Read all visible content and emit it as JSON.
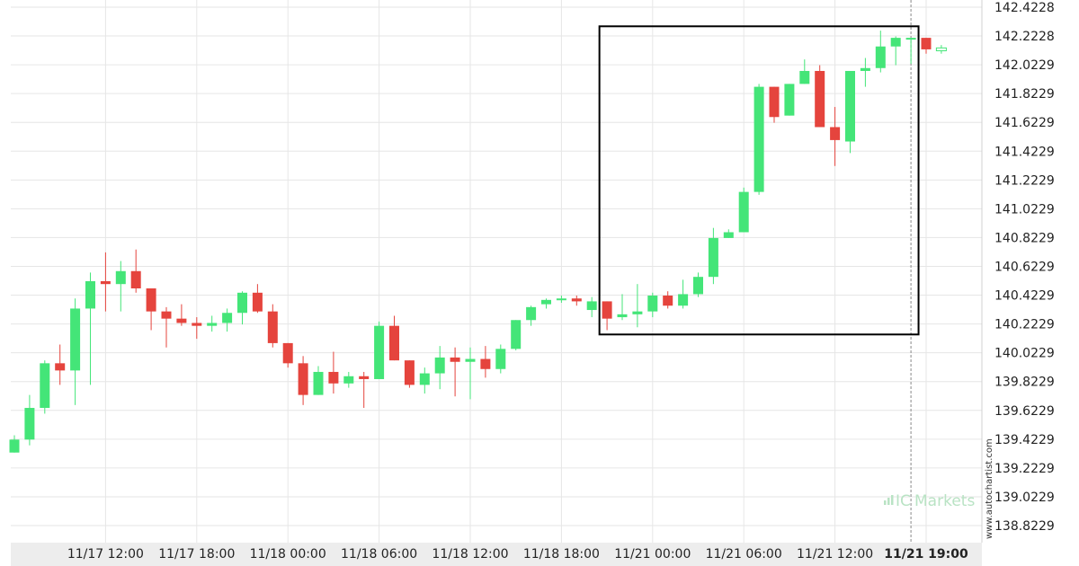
{
  "chart_data": {
    "type": "candlestick",
    "y_ticks": [
      "142.4228",
      "142.2228",
      "142.0229",
      "141.8229",
      "141.6229",
      "141.4229",
      "141.2229",
      "141.0229",
      "140.8229",
      "140.6229",
      "140.4229",
      "140.2229",
      "140.0229",
      "139.8229",
      "139.6229",
      "139.4229",
      "139.2229",
      "139.0229",
      "138.8229"
    ],
    "ylim": [
      138.72,
      142.46
    ],
    "x_ticks": [
      "11/17 12:00",
      "11/17 18:00",
      "11/18 00:00",
      "11/18 06:00",
      "11/18 12:00",
      "11/18 18:00",
      "11/21 00:00",
      "11/21 06:00",
      "11/21 12:00",
      "11/21 19:00"
    ],
    "x_tick_index": [
      6,
      12,
      18,
      24,
      30,
      36,
      42,
      48,
      54,
      60
    ],
    "highlight_tick": "11/21 19:00",
    "current_time_index": 59,
    "pattern_box": {
      "from_index": 38.5,
      "to_index": 59.5,
      "y_top": 142.29,
      "y_bottom": 140.15
    },
    "up_color": "#44e578",
    "down_color": "#e5443d",
    "candles": [
      {
        "o": 139.33,
        "h": 139.45,
        "l": 139.33,
        "c": 139.42
      },
      {
        "o": 139.42,
        "h": 139.73,
        "l": 139.38,
        "c": 139.64
      },
      {
        "o": 139.64,
        "h": 139.97,
        "l": 139.6,
        "c": 139.95
      },
      {
        "o": 139.95,
        "h": 140.08,
        "l": 139.8,
        "c": 139.9
      },
      {
        "o": 139.9,
        "h": 140.4,
        "l": 139.66,
        "c": 140.33
      },
      {
        "o": 140.33,
        "h": 140.58,
        "l": 139.8,
        "c": 140.52
      },
      {
        "o": 140.52,
        "h": 140.72,
        "l": 140.31,
        "c": 140.5
      },
      {
        "o": 140.5,
        "h": 140.66,
        "l": 140.31,
        "c": 140.59
      },
      {
        "o": 140.59,
        "h": 140.74,
        "l": 140.44,
        "c": 140.47
      },
      {
        "o": 140.47,
        "h": 140.47,
        "l": 140.18,
        "c": 140.31
      },
      {
        "o": 140.31,
        "h": 140.34,
        "l": 140.06,
        "c": 140.26
      },
      {
        "o": 140.26,
        "h": 140.36,
        "l": 140.21,
        "c": 140.23
      },
      {
        "o": 140.23,
        "h": 140.27,
        "l": 140.12,
        "c": 140.21
      },
      {
        "o": 140.21,
        "h": 140.28,
        "l": 140.17,
        "c": 140.23
      },
      {
        "o": 140.23,
        "h": 140.33,
        "l": 140.17,
        "c": 140.3
      },
      {
        "o": 140.3,
        "h": 140.45,
        "l": 140.22,
        "c": 140.44
      },
      {
        "o": 140.44,
        "h": 140.5,
        "l": 140.3,
        "c": 140.31
      },
      {
        "o": 140.31,
        "h": 140.36,
        "l": 140.06,
        "c": 140.09
      },
      {
        "o": 140.09,
        "h": 140.09,
        "l": 139.92,
        "c": 139.95
      },
      {
        "o": 139.95,
        "h": 140.0,
        "l": 139.66,
        "c": 139.73
      },
      {
        "o": 139.73,
        "h": 139.93,
        "l": 139.73,
        "c": 139.89
      },
      {
        "o": 139.89,
        "h": 140.03,
        "l": 139.74,
        "c": 139.81
      },
      {
        "o": 139.81,
        "h": 139.89,
        "l": 139.78,
        "c": 139.86
      },
      {
        "o": 139.86,
        "h": 139.89,
        "l": 139.64,
        "c": 139.84
      },
      {
        "o": 139.84,
        "h": 140.24,
        "l": 139.84,
        "c": 140.21
      },
      {
        "o": 140.21,
        "h": 140.28,
        "l": 139.97,
        "c": 139.97
      },
      {
        "o": 139.97,
        "h": 139.97,
        "l": 139.78,
        "c": 139.8
      },
      {
        "o": 139.8,
        "h": 139.92,
        "l": 139.74,
        "c": 139.88
      },
      {
        "o": 139.88,
        "h": 140.07,
        "l": 139.77,
        "c": 139.99
      },
      {
        "o": 139.99,
        "h": 140.06,
        "l": 139.72,
        "c": 139.96
      },
      {
        "o": 139.96,
        "h": 140.06,
        "l": 139.7,
        "c": 139.98
      },
      {
        "o": 139.98,
        "h": 140.07,
        "l": 139.85,
        "c": 139.91
      },
      {
        "o": 139.91,
        "h": 140.08,
        "l": 139.88,
        "c": 140.05
      },
      {
        "o": 140.05,
        "h": 140.25,
        "l": 140.04,
        "c": 140.25
      },
      {
        "o": 140.25,
        "h": 140.35,
        "l": 140.21,
        "c": 140.34
      },
      {
        "o": 140.36,
        "h": 140.4,
        "l": 140.33,
        "c": 140.39
      },
      {
        "o": 140.39,
        "h": 140.42,
        "l": 140.37,
        "c": 140.4
      },
      {
        "o": 140.4,
        "h": 140.42,
        "l": 140.35,
        "c": 140.38
      },
      {
        "o": 140.32,
        "h": 140.41,
        "l": 140.27,
        "c": 140.38
      },
      {
        "o": 140.38,
        "h": 140.38,
        "l": 140.18,
        "c": 140.26
      },
      {
        "o": 140.27,
        "h": 140.43,
        "l": 140.25,
        "c": 140.29
      },
      {
        "o": 140.29,
        "h": 140.5,
        "l": 140.2,
        "c": 140.31
      },
      {
        "o": 140.31,
        "h": 140.44,
        "l": 140.27,
        "c": 140.42
      },
      {
        "o": 140.42,
        "h": 140.45,
        "l": 140.33,
        "c": 140.35
      },
      {
        "o": 140.35,
        "h": 140.53,
        "l": 140.33,
        "c": 140.43
      },
      {
        "o": 140.43,
        "h": 140.58,
        "l": 140.41,
        "c": 140.55
      },
      {
        "o": 140.55,
        "h": 140.89,
        "l": 140.5,
        "c": 140.82
      },
      {
        "o": 140.82,
        "h": 140.88,
        "l": 140.82,
        "c": 140.86
      },
      {
        "o": 140.86,
        "h": 141.17,
        "l": 140.86,
        "c": 141.14
      },
      {
        "o": 141.14,
        "h": 141.89,
        "l": 141.12,
        "c": 141.87
      },
      {
        "o": 141.87,
        "h": 141.87,
        "l": 141.62,
        "c": 141.66
      },
      {
        "o": 141.67,
        "h": 141.89,
        "l": 141.67,
        "c": 141.89
      },
      {
        "o": 141.89,
        "h": 142.06,
        "l": 141.89,
        "c": 141.98
      },
      {
        "o": 141.98,
        "h": 142.02,
        "l": 141.59,
        "c": 141.59
      },
      {
        "o": 141.59,
        "h": 141.73,
        "l": 141.32,
        "c": 141.5
      },
      {
        "o": 141.49,
        "h": 141.98,
        "l": 141.41,
        "c": 141.98
      },
      {
        "o": 141.98,
        "h": 142.07,
        "l": 141.87,
        "c": 142.0
      },
      {
        "o": 142.0,
        "h": 142.26,
        "l": 141.97,
        "c": 142.15
      },
      {
        "o": 142.15,
        "h": 142.22,
        "l": 142.02,
        "c": 142.21
      },
      {
        "o": 142.21,
        "h": 142.21,
        "l": 142.03,
        "c": 142.21
      },
      {
        "o": 142.21,
        "h": 142.21,
        "l": 142.1,
        "c": 142.13
      },
      {
        "o": 142.12,
        "h": 142.16,
        "l": 142.1,
        "c": 142.14
      }
    ]
  },
  "colors": {
    "up": "#44e578",
    "down": "#e5443d",
    "grid": "#e6e6e6",
    "box": "#000000",
    "axis_text": "#222222",
    "watermark": "#b9e3c4"
  },
  "watermark": {
    "logo_icon": "ic-markets-bars-icon",
    "text": "Markets",
    "prefix": "IC"
  },
  "side_text": "www.autochartist.com",
  "last_candle_style": "hollow"
}
